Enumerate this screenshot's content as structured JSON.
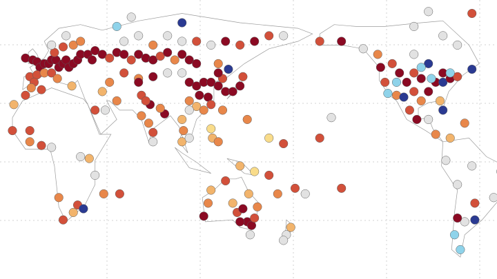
{
  "map": {
    "palette": [
      "#8b0a23",
      "#d2503a",
      "#e8874a",
      "#f2b46c",
      "#f9dc8a",
      "#8fd3ea",
      "#2a3a92",
      "#e2e2e2"
    ],
    "points": [
      [
        -8,
        53,
        0
      ],
      [
        -3,
        52,
        0
      ],
      [
        0,
        51,
        0
      ],
      [
        2,
        48,
        0
      ],
      [
        5,
        50,
        0
      ],
      [
        8,
        50,
        0
      ],
      [
        10,
        52,
        0
      ],
      [
        13,
        52,
        0
      ],
      [
        15,
        48,
        0
      ],
      [
        18,
        50,
        0
      ],
      [
        20,
        52,
        0
      ],
      [
        22,
        48,
        0
      ],
      [
        25,
        50,
        0
      ],
      [
        28,
        52,
        0
      ],
      [
        30,
        55,
        0
      ],
      [
        35,
        55,
        0
      ],
      [
        38,
        52,
        0
      ],
      [
        -5,
        43,
        1
      ],
      [
        0,
        44,
        1
      ],
      [
        5,
        45,
        2
      ],
      [
        10,
        45,
        1
      ],
      [
        14,
        42,
        2
      ],
      [
        -2,
        40,
        1
      ],
      [
        12,
        56,
        1
      ],
      [
        18,
        59,
        1
      ],
      [
        25,
        60,
        2
      ],
      [
        10,
        60,
        7
      ],
      [
        20,
        65,
        7
      ],
      [
        30,
        62,
        2
      ],
      [
        40,
        57,
        0
      ],
      [
        45,
        55,
        0
      ],
      [
        50,
        53,
        1
      ],
      [
        24,
        38,
        3
      ],
      [
        -4,
        37,
        2
      ],
      [
        -8,
        33,
        1
      ],
      [
        3,
        36,
        1
      ],
      [
        -16,
        28,
        3
      ],
      [
        55,
        56,
        0
      ],
      [
        60,
        55,
        0
      ],
      [
        65,
        52,
        1
      ],
      [
        70,
        55,
        0
      ],
      [
        75,
        53,
        0
      ],
      [
        80,
        52,
        0
      ],
      [
        85,
        54,
        1
      ],
      [
        90,
        56,
        0
      ],
      [
        95,
        52,
        2
      ],
      [
        100,
        55,
        0
      ],
      [
        105,
        52,
        0
      ],
      [
        110,
        50,
        0
      ],
      [
        60,
        62,
        7
      ],
      [
        70,
        65,
        7
      ],
      [
        80,
        60,
        2
      ],
      [
        90,
        65,
        7
      ],
      [
        100,
        62,
        7
      ],
      [
        110,
        62,
        1
      ],
      [
        120,
        60,
        7
      ],
      [
        130,
        62,
        0
      ],
      [
        140,
        60,
        1
      ],
      [
        150,
        62,
        0
      ],
      [
        160,
        65,
        1
      ],
      [
        170,
        65,
        7
      ],
      [
        60,
        45,
        1
      ],
      [
        70,
        42,
        2
      ],
      [
        80,
        43,
        0
      ],
      [
        90,
        45,
        7
      ],
      [
        100,
        45,
        7
      ],
      [
        50,
        40,
        2
      ],
      [
        45,
        35,
        3
      ],
      [
        55,
        30,
        2
      ],
      [
        40,
        25,
        1
      ],
      [
        47,
        25,
        7
      ],
      [
        70,
        40,
        0
      ],
      [
        72,
        33,
        1
      ],
      [
        55,
        70,
        5
      ],
      [
        65,
        75,
        7
      ],
      [
        100,
        72,
        6
      ],
      [
        105,
        40,
        0
      ],
      [
        110,
        38,
        0
      ],
      [
        115,
        40,
        0
      ],
      [
        120,
        40,
        0
      ],
      [
        112,
        33,
        0
      ],
      [
        118,
        32,
        0
      ],
      [
        105,
        30,
        2
      ],
      [
        110,
        27,
        3
      ],
      [
        115,
        25,
        2
      ],
      [
        120,
        28,
        1
      ],
      [
        125,
        38,
        0
      ],
      [
        128,
        42,
        1
      ],
      [
        130,
        35,
        0
      ],
      [
        135,
        35,
        0
      ],
      [
        140,
        38,
        0
      ],
      [
        142,
        43,
        1
      ],
      [
        125,
        45,
        0
      ],
      [
        125,
        50,
        2
      ],
      [
        132,
        47,
        6
      ],
      [
        105,
        25,
        7
      ],
      [
        100,
        20,
        3
      ],
      [
        101,
        14,
        2
      ],
      [
        100,
        8,
        3
      ],
      [
        105,
        10,
        7
      ],
      [
        120,
        15,
        4
      ],
      [
        121,
        10,
        3
      ],
      [
        125,
        8,
        2
      ],
      [
        72,
        22,
        2
      ],
      [
        78,
        28,
        0
      ],
      [
        77,
        18,
        2
      ],
      [
        80,
        13,
        1
      ],
      [
        88,
        23,
        0
      ],
      [
        85,
        26,
        2
      ],
      [
        75,
        30,
        1
      ],
      [
        80,
        8,
        7
      ],
      [
        -17,
        14,
        1
      ],
      [
        -5,
        8,
        2
      ],
      [
        3,
        6,
        1
      ],
      [
        10,
        5,
        7
      ],
      [
        30,
        0,
        7
      ],
      [
        36,
        -1,
        3
      ],
      [
        40,
        -10,
        7
      ],
      [
        28,
        -26,
        1
      ],
      [
        18,
        -34,
        1
      ],
      [
        25,
        -30,
        3
      ],
      [
        32,
        -28,
        6
      ],
      [
        15,
        -22,
        2
      ],
      [
        46,
        -20,
        2
      ],
      [
        57,
        -20,
        1
      ],
      [
        -5,
        14,
        1
      ],
      [
        115,
        -32,
        0
      ],
      [
        118,
        -25,
        2
      ],
      [
        120,
        -18,
        3
      ],
      [
        130,
        -13,
        1
      ],
      [
        135,
        -25,
        3
      ],
      [
        138,
        -30,
        1
      ],
      [
        142,
        -28,
        0
      ],
      [
        145,
        -35,
        0
      ],
      [
        148,
        -37,
        0
      ],
      [
        150,
        -33,
        1
      ],
      [
        152,
        -27,
        2
      ],
      [
        146,
        -20,
        3
      ],
      [
        140,
        -35,
        0
      ],
      [
        147,
        -42,
        7
      ],
      [
        172,
        -42,
        7
      ],
      [
        175,
        -38,
        3
      ],
      [
        170,
        -45,
        7
      ],
      [
        160,
        -10,
        1
      ],
      [
        166,
        -20,
        2
      ],
      [
        178,
        -17,
        1
      ],
      [
        150,
        -8,
        4
      ],
      [
        140,
        -5,
        3
      ],
      [
        145,
        20,
        2
      ],
      [
        160,
        10,
        4
      ],
      [
        170,
        7,
        1
      ],
      [
        128,
        25,
        2
      ],
      [
        -157,
        21,
        7
      ],
      [
        -150,
        -17,
        1
      ],
      [
        -175,
        -20,
        7
      ],
      [
        -165,
        10,
        1
      ],
      [
        -123,
        48,
        0
      ],
      [
        -120,
        40,
        1
      ],
      [
        -118,
        34,
        5
      ],
      [
        -112,
        33,
        2
      ],
      [
        -105,
        40,
        0
      ],
      [
        -100,
        35,
        1
      ],
      [
        -95,
        30,
        2
      ],
      [
        -90,
        35,
        0
      ],
      [
        -85,
        40,
        0
      ],
      [
        -80,
        40,
        6
      ],
      [
        -75,
        42,
        0
      ],
      [
        -70,
        43,
        1
      ],
      [
        -88,
        42,
        5
      ],
      [
        -95,
        42,
        0
      ],
      [
        -100,
        45,
        1
      ],
      [
        -110,
        45,
        0
      ],
      [
        -115,
        50,
        1
      ],
      [
        -125,
        55,
        2
      ],
      [
        -135,
        58,
        7
      ],
      [
        -150,
        62,
        0
      ],
      [
        -165,
        62,
        1
      ],
      [
        -100,
        55,
        7
      ],
      [
        -90,
        50,
        6
      ],
      [
        -80,
        45,
        0
      ],
      [
        -82,
        30,
        3
      ],
      [
        -98,
        20,
        0
      ],
      [
        -103,
        25,
        1
      ],
      [
        -90,
        20,
        7
      ],
      [
        -85,
        12,
        2
      ],
      [
        -75,
        10,
        3
      ],
      [
        -65,
        18,
        2
      ],
      [
        -80,
        25,
        6
      ],
      [
        -107,
        32,
        6
      ],
      [
        -112,
        40,
        5
      ],
      [
        -95,
        48,
        5
      ],
      [
        -75,
        45,
        5
      ],
      [
        -60,
        47,
        6
      ],
      [
        -70,
        60,
        7
      ],
      [
        -80,
        65,
        7
      ],
      [
        -100,
        70,
        7
      ],
      [
        -90,
        78,
        7
      ],
      [
        -60,
        77,
        1
      ],
      [
        -78,
        -2,
        7
      ],
      [
        -70,
        -15,
        7
      ],
      [
        -58,
        -25,
        1
      ],
      [
        -65,
        -35,
        7
      ],
      [
        -58,
        -34,
        6
      ],
      [
        -70,
        -33,
        0
      ],
      [
        -72,
        -42,
        5
      ],
      [
        -68,
        -50,
        5
      ],
      [
        -45,
        -22,
        7
      ],
      [
        -40,
        -8,
        7
      ],
      [
        -60,
        -5,
        7
      ]
    ]
  }
}
